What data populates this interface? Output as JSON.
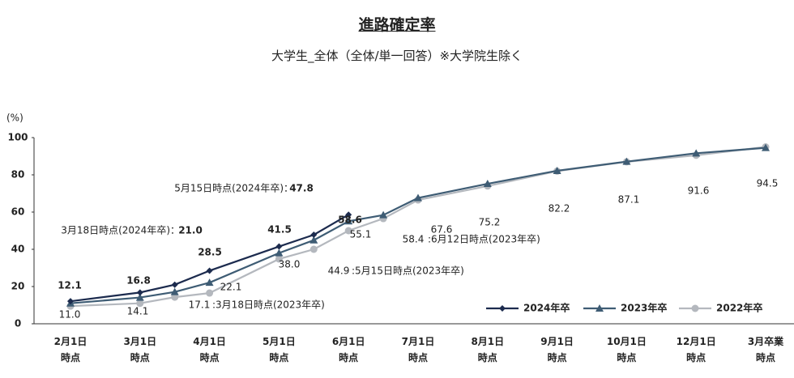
{
  "chart_data": {
    "type": "line",
    "title": "進路確定率",
    "subtitle": "大学生_全体（全体/単一回答）※大学院生除く",
    "y_unit": "(%)",
    "categories": [
      "2月1日\n時点",
      "3月1日\n時点",
      null,
      "4月1日\n時点",
      "5月1日\n時点",
      null,
      "6月1日\n時点",
      null,
      "7月1日\n時点",
      "8月1日\n時点",
      "9月1日\n時点",
      "10月1日\n時点",
      "12月1日\n時点",
      "3月卒業\n時点"
    ],
    "ylim": [
      0,
      100
    ],
    "yticks": [
      0,
      20,
      40,
      60,
      80,
      100
    ],
    "grid": false,
    "legend": "bottom-right",
    "series": [
      {
        "name": "2024年卒",
        "color": "#1c2b4e",
        "marker": "diamond",
        "values": [
          12.1,
          16.8,
          21.0,
          28.5,
          41.5,
          47.8,
          58.6,
          null,
          null,
          null,
          null,
          null,
          null,
          null
        ],
        "value_labels": [
          "12.1",
          "16.8",
          "21.0",
          "28.5",
          "41.5",
          "47.8",
          "58.6",
          null,
          null,
          null,
          null,
          null,
          null,
          null
        ]
      },
      {
        "name": "2023年卒",
        "color": "#3e5c74",
        "marker": "triangle",
        "values": [
          11.0,
          14.1,
          17.1,
          22.1,
          38.0,
          44.9,
          55.1,
          58.4,
          67.6,
          75.2,
          82.2,
          87.1,
          91.6,
          94.5
        ],
        "value_labels": [
          "11.0",
          "14.1",
          "17.1",
          "22.1",
          "38.0",
          "44.9",
          "55.1",
          "58.4",
          "67.6",
          "75.2",
          "82.2",
          "87.1",
          "91.6",
          "94.5"
        ]
      },
      {
        "name": "2022年卒",
        "color": "#b4b8be",
        "marker": "circle",
        "values": [
          9.5,
          11.0,
          14.3,
          16.5,
          34.8,
          40.0,
          50.0,
          56.5,
          66.5,
          74.0,
          82.0,
          87.0,
          90.5,
          95.0
        ]
      }
    ],
    "annotations": [
      "3月18日時点(2024年卒)：",
      "5月15日時点(2024年卒)：",
      ":3月18日時点(2023年卒)",
      ":5月15日時点(2023年卒)",
      ":6月12日時点(2023年卒)"
    ]
  }
}
